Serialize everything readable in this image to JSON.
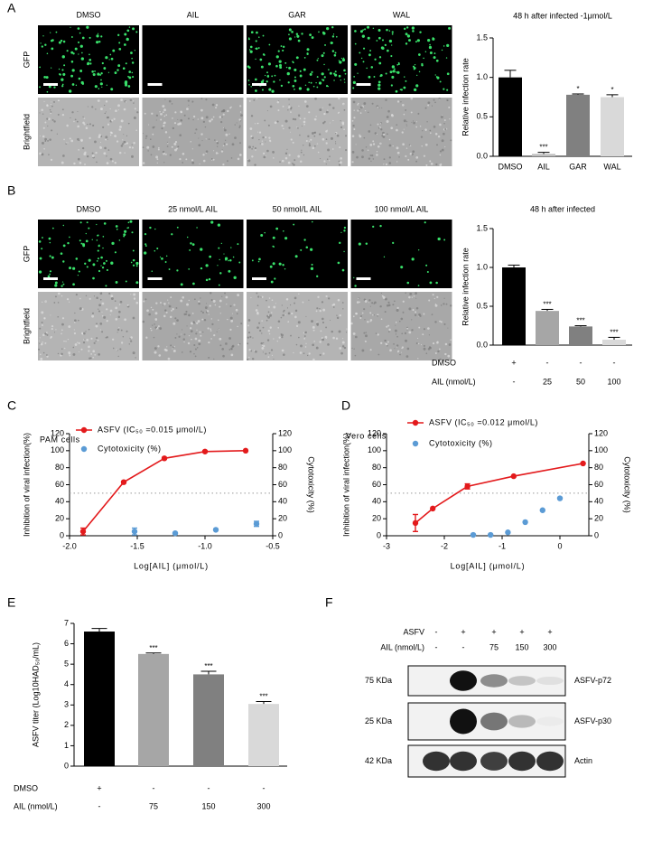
{
  "panels": [
    "A",
    "B",
    "C",
    "D",
    "E",
    "F"
  ],
  "images": {
    "A": {
      "columns": [
        "DMSO",
        "AIL",
        "GAR",
        "WAL"
      ],
      "rows": [
        "GFP",
        "Brightfield"
      ]
    },
    "B": {
      "columns": [
        "DMSO",
        "25 nmol/L AIL",
        "50 nmol/L AIL",
        "100 nmol/L AIL"
      ],
      "rows": [
        "GFP",
        "Brightfield"
      ]
    }
  },
  "blot": {
    "rows": [
      {
        "label": "ASFV",
        "values": [
          "-",
          "+",
          "+",
          "+",
          "+"
        ]
      },
      {
        "label": "AIL (nmol/L)",
        "values": [
          "-",
          "-",
          "75",
          "150",
          "300"
        ]
      }
    ],
    "bands": [
      {
        "size": "75 KDa",
        "name": "ASFV-p72"
      },
      {
        "size": "25 KDa",
        "name": "ASFV-p30"
      },
      {
        "size": "42 KDa",
        "name": "Actin"
      }
    ]
  },
  "chart_data": [
    {
      "type": "bar",
      "title": "48 h after infected  -1μmol/L",
      "y_label": "Relative infection rate",
      "categories": [
        "DMSO",
        "AIL",
        "GAR",
        "WAL"
      ],
      "values": [
        1.0,
        0.03,
        0.78,
        0.75
      ],
      "errors": [
        0.09,
        0.02,
        0.01,
        0.03
      ],
      "significance": [
        null,
        "***",
        "*",
        "*"
      ],
      "colors": [
        "#000000",
        "#bfbfbf",
        "#808080",
        "#d9d9d9"
      ],
      "ylim": [
        0,
        1.5
      ],
      "yticks": [
        {
          "value": 0,
          "label": "0.0"
        },
        0.5,
        {
          "value": 1,
          "label": "1.0"
        },
        1.5
      ]
    },
    {
      "type": "bar",
      "title": "48 h after infected",
      "y_label": "Relative infection rate",
      "xrows": [
        {
          "label": "DMSO",
          "values": [
            "+",
            "-",
            "-",
            "-"
          ]
        },
        {
          "label": "AIL (nmol/L)",
          "values": [
            "-",
            "25",
            "50",
            "100"
          ]
        }
      ],
      "values": [
        1.0,
        0.44,
        0.24,
        0.07
      ],
      "errors": [
        0.03,
        0.02,
        0.01,
        0.03
      ],
      "significance": [
        null,
        "***",
        "***",
        "***"
      ],
      "colors": [
        "#000000",
        "#a6a6a6",
        "#808080",
        "#d9d9d9"
      ],
      "ylim": [
        0,
        1.5
      ],
      "yticks": [
        {
          "value": 0,
          "label": "0.0"
        },
        0.5,
        {
          "value": 1,
          "label": "1.0"
        },
        1.5
      ]
    },
    {
      "type": "line",
      "subtitle": "PAM cells",
      "x_label": "Log[AIL] (μmol/L)",
      "y_label": "Inhibition of viral infection(%)",
      "y2_label": "Cytotoxicity (%)",
      "series": [
        {
          "name": "ASFV (IC₅₀ =0.015 μmol/L)",
          "color": "#e31a1c",
          "kind": "line",
          "x": [
            -1.9,
            -1.6,
            -1.3,
            -1.0,
            -0.7
          ],
          "values": [
            5,
            63,
            91,
            99,
            100
          ],
          "errors": [
            4,
            1,
            1,
            1,
            0
          ]
        },
        {
          "name": "Cytotoxicity (%)",
          "color": "#5b9bd5",
          "kind": "scatter",
          "axis": "y2",
          "x": [
            -1.52,
            -1.22,
            -0.92,
            -0.62
          ],
          "values": [
            5,
            3,
            7,
            14
          ],
          "errors": [
            4,
            0,
            0,
            3
          ]
        }
      ],
      "reference_line": 50,
      "xlim": [
        -2,
        -0.5
      ],
      "xticks": [
        {
          "value": -2,
          "label": "-2.0"
        },
        -1.5,
        {
          "value": -1,
          "label": "-1.0"
        },
        -0.5
      ],
      "ylim": [
        0,
        120
      ],
      "yticks": [
        0,
        20,
        40,
        60,
        80,
        100,
        120
      ],
      "y2lim": [
        0,
        120
      ],
      "y2ticks": [
        0,
        20,
        40,
        60,
        80,
        100,
        120
      ]
    },
    {
      "type": "line",
      "subtitle": "Vero cells",
      "x_label": "Log[AIL] (μmol/L)",
      "y_label": "Inhibition of viral infection(%)",
      "y2_label": "Cytotoxicity (%)",
      "series": [
        {
          "name": "ASFV (IC₅₀ =0.012 μmol/L)",
          "color": "#e31a1c",
          "kind": "line",
          "x": [
            -2.5,
            -2.2,
            -1.6,
            -0.8,
            0.4
          ],
          "values": [
            15,
            32,
            58,
            70,
            85
          ],
          "errors": [
            10,
            0,
            3,
            0,
            0
          ]
        },
        {
          "name": "Cytotoxicity (%)",
          "color": "#5b9bd5",
          "kind": "scatter",
          "axis": "y2",
          "x": [
            -1.5,
            -1.2,
            -0.9,
            -0.6,
            -0.3,
            0
          ],
          "values": [
            1,
            1,
            4,
            16,
            30,
            44
          ],
          "errors": [
            0,
            0,
            0,
            0,
            0,
            0
          ]
        }
      ],
      "reference_line": 50,
      "xlim": [
        -3,
        0.5
      ],
      "xticks": [
        -3,
        -2,
        -1,
        0
      ],
      "ylim": [
        0,
        120
      ],
      "yticks": [
        0,
        20,
        40,
        60,
        80,
        100,
        120
      ],
      "y2lim": [
        0,
        120
      ],
      "y2ticks": [
        0,
        20,
        40,
        60,
        80,
        100,
        120
      ]
    },
    {
      "type": "bar",
      "y_label": "ASFV titer (Log10HAD₅₀/mL)",
      "xrows": [
        {
          "label": "DMSO",
          "values": [
            "+",
            "-",
            "-",
            "-"
          ]
        },
        {
          "label": "AIL (nmol/L)",
          "values": [
            "-",
            "75",
            "150",
            "300"
          ]
        }
      ],
      "values": [
        6.6,
        5.5,
        4.5,
        3.05
      ],
      "errors": [
        0.15,
        0.05,
        0.15,
        0.12
      ],
      "significance": [
        null,
        "***",
        "***",
        "***"
      ],
      "colors": [
        "#000000",
        "#a6a6a6",
        "#808080",
        "#d9d9d9"
      ],
      "ylim": [
        0,
        7
      ],
      "yticks": [
        0,
        1,
        2,
        3,
        4,
        5,
        6,
        7
      ]
    }
  ]
}
